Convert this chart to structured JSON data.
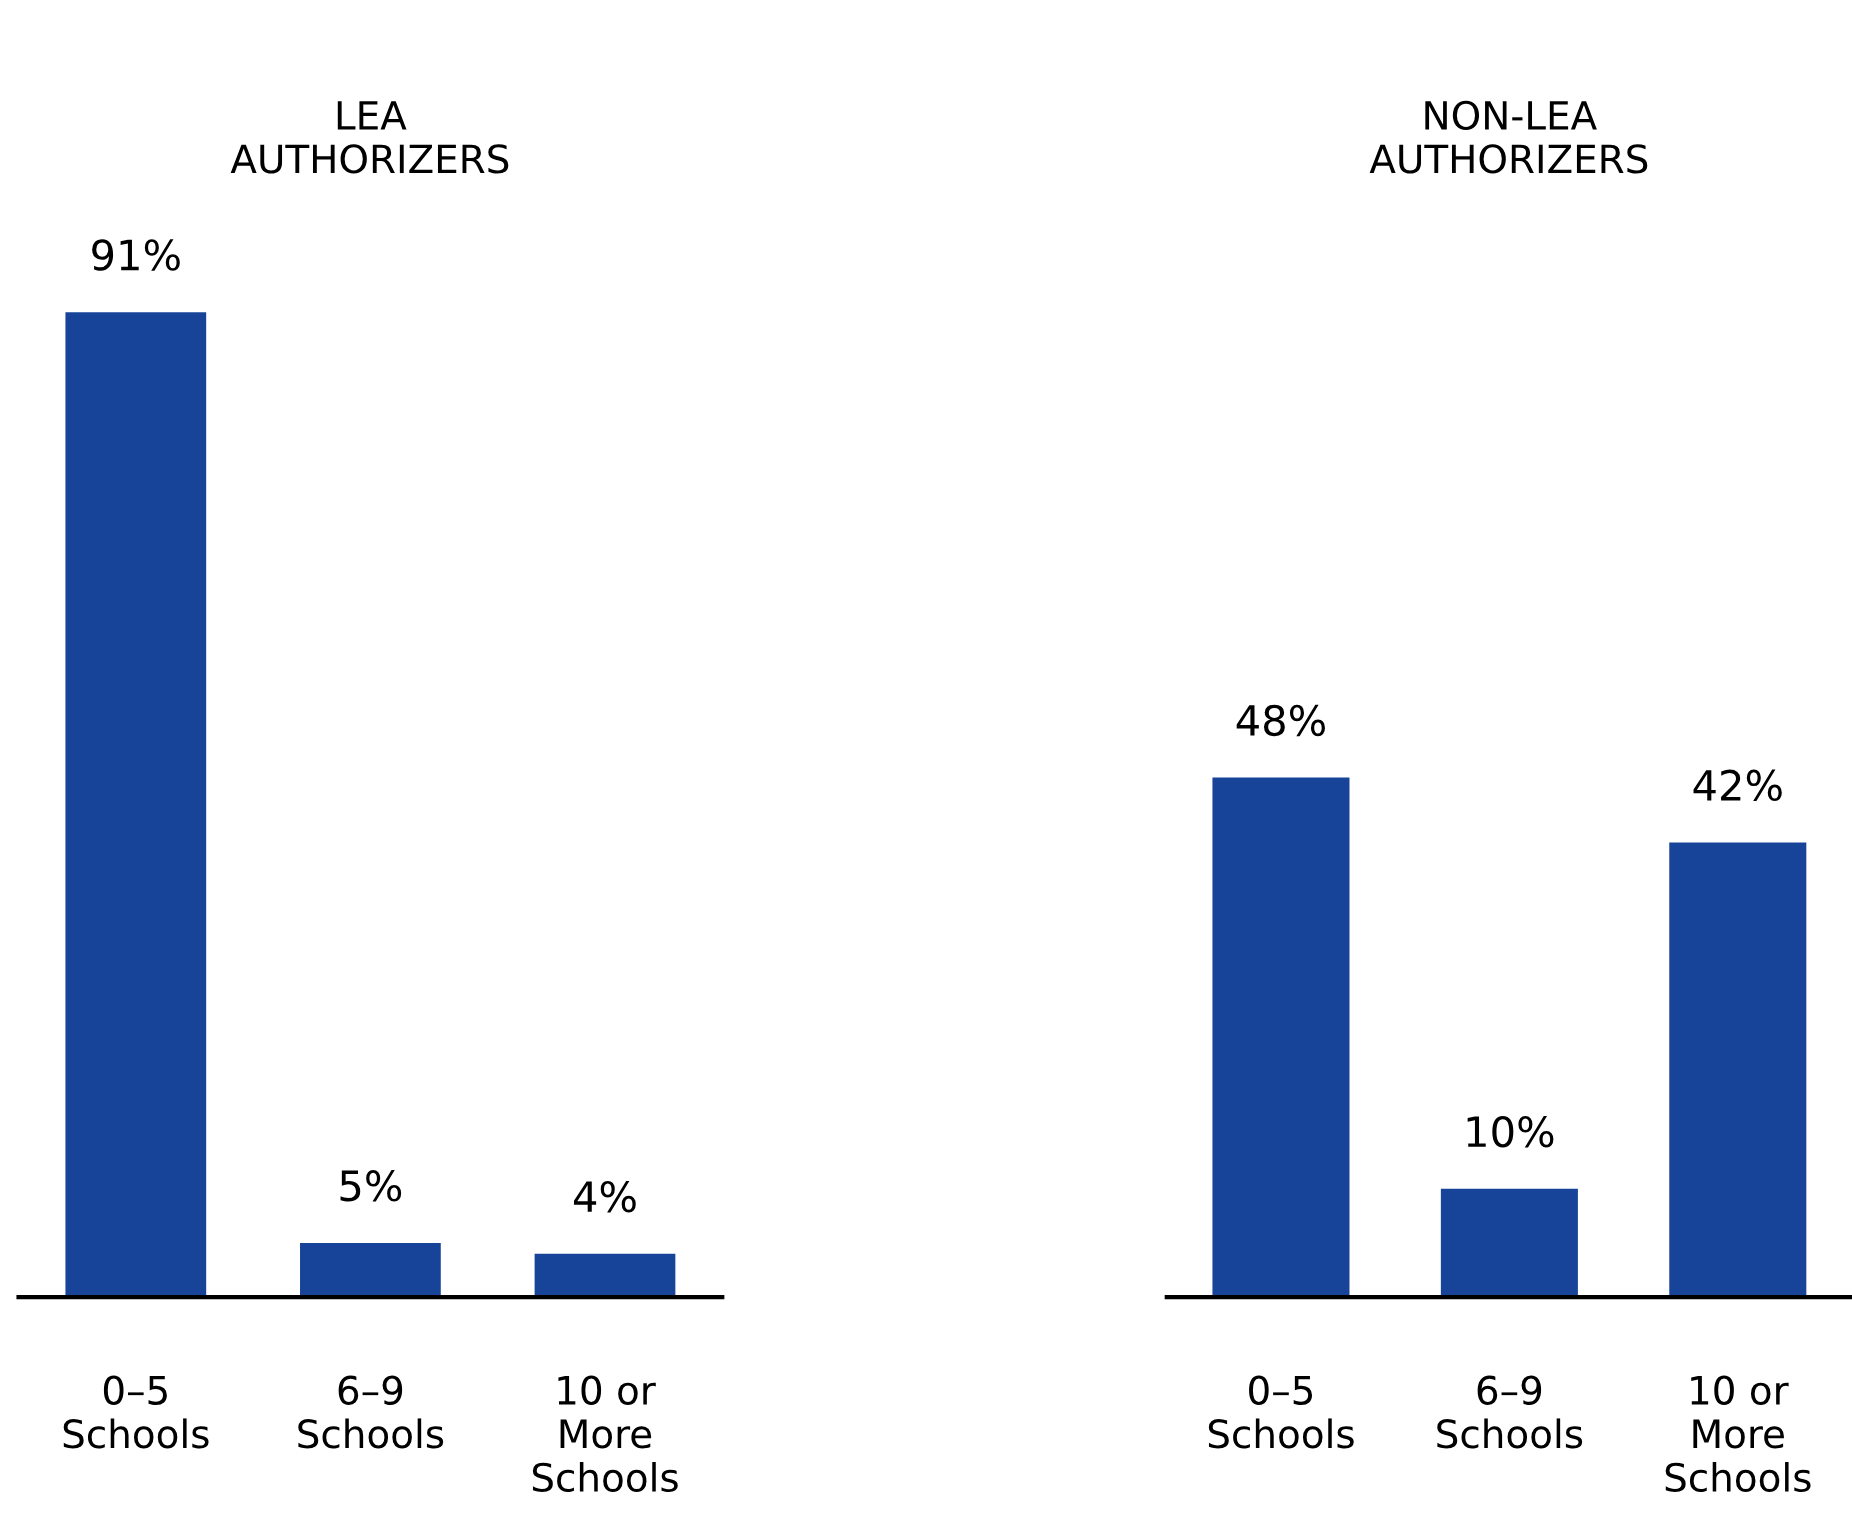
{
  "chart_data": [
    {
      "type": "bar",
      "title": "LEA\nAUTHORIZERS",
      "categories": [
        "0–5\nSchools",
        "6–9\nSchools",
        "10 or\nMore\nSchools"
      ],
      "values": [
        91,
        5,
        4
      ],
      "color": "#174499",
      "data_labels": true,
      "value_labels": [
        "91%",
        "5%",
        "4%"
      ],
      "grid": false,
      "legend": false,
      "tick_labels": "x"
    },
    {
      "type": "bar",
      "title": "NON-LEA\nAUTHORIZERS",
      "categories": [
        "0–5\nSchools",
        "6–9\nSchools",
        "10 or\nMore\nSchools"
      ],
      "values": [
        48,
        10,
        42
      ],
      "color": "#174499",
      "data_labels": true,
      "value_labels": [
        "48%",
        "10%",
        "42%"
      ],
      "grid": false,
      "legend": false,
      "tick_labels": "x"
    }
  ]
}
